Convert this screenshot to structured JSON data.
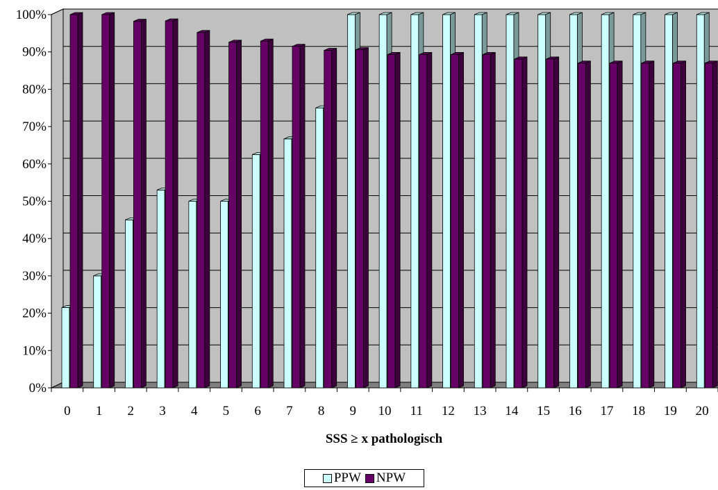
{
  "chart_data": {
    "type": "bar",
    "title": "",
    "xlabel": "SSS ≥ x pathologisch",
    "ylabel": "",
    "categories": [
      "0",
      "1",
      "2",
      "3",
      "4",
      "5",
      "6",
      "7",
      "8",
      "9",
      "10",
      "11",
      "12",
      "13",
      "14",
      "15",
      "16",
      "17",
      "18",
      "19",
      "20"
    ],
    "series": [
      {
        "name": "PPW",
        "color": "#CCFFFF",
        "values": [
          21.5,
          30,
          45,
          53,
          50,
          50,
          62.5,
          66.7,
          75,
          100,
          100,
          100,
          100,
          100,
          100,
          100,
          100,
          100,
          100,
          100,
          100
        ]
      },
      {
        "name": "NPW",
        "color": "#660066",
        "values": [
          100,
          100,
          98.2,
          98.3,
          95.2,
          92.6,
          92.9,
          91.5,
          90.4,
          90.6,
          89.3,
          89.3,
          89.3,
          89.3,
          88.1,
          88.1,
          87,
          87,
          87,
          87,
          87
        ]
      }
    ],
    "ylim": [
      0,
      100
    ],
    "yticks": [
      "0%",
      "10%",
      "20%",
      "30%",
      "40%",
      "50%",
      "60%",
      "70%",
      "80%",
      "90%",
      "100%"
    ],
    "grid": true,
    "legend_position": "bottom",
    "wall_color": "#C0C0C0",
    "floor_color": "#808080"
  }
}
